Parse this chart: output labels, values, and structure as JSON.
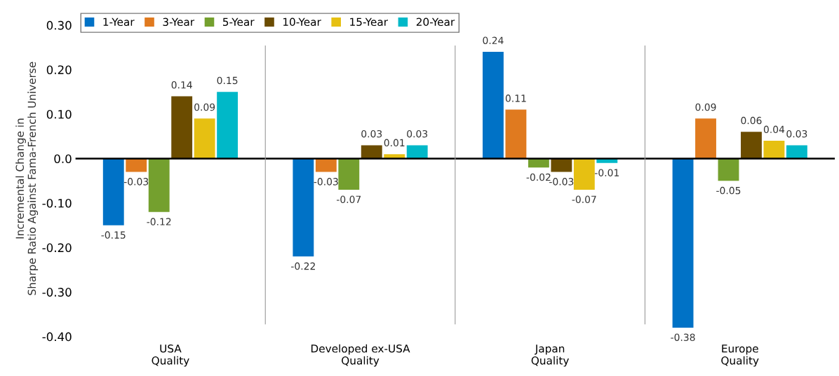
{
  "chart_data": {
    "type": "bar",
    "ylabel": "Incremental Change in\nSharpe Ratio Against Fama-French Universe",
    "categories": [
      "USA\nQuality",
      "Developed ex-USA\nQuality",
      "Japan\nQuality",
      "Europe\nQuality"
    ],
    "series": [
      {
        "name": "1-Year",
        "color": "#0072c6",
        "values": [
          -0.15,
          -0.22,
          0.24,
          -0.38
        ]
      },
      {
        "name": "3-Year",
        "color": "#e07a1f",
        "values": [
          -0.03,
          -0.03,
          0.11,
          0.09
        ]
      },
      {
        "name": "5-Year",
        "color": "#74a02e",
        "values": [
          -0.12,
          -0.07,
          -0.02,
          -0.05
        ]
      },
      {
        "name": "10-Year",
        "color": "#6b4c00",
        "values": [
          0.14,
          0.03,
          -0.03,
          0.06
        ]
      },
      {
        "name": "15-Year",
        "color": "#e6c012",
        "values": [
          0.09,
          0.01,
          -0.07,
          0.04
        ]
      },
      {
        "name": "20-Year",
        "color": "#00b8c8",
        "values": [
          0.15,
          0.03,
          -0.01,
          0.03
        ]
      }
    ],
    "ylim": [
      -0.4,
      0.31
    ],
    "yticks": [
      {
        "value": 0.3,
        "label": "0.30"
      },
      {
        "value": 0.2,
        "label": "0.20"
      },
      {
        "value": 0.1,
        "label": "0.10"
      },
      {
        "value": 0.0,
        "label": "0.0"
      },
      {
        "value": -0.1,
        "label": "-0.10"
      },
      {
        "value": -0.2,
        "label": "-0.20"
      },
      {
        "value": -0.3,
        "label": "-0.30"
      },
      {
        "value": -0.4,
        "label": "-0.40"
      }
    ],
    "data_labels": true,
    "legend": "top left",
    "grid": false
  }
}
